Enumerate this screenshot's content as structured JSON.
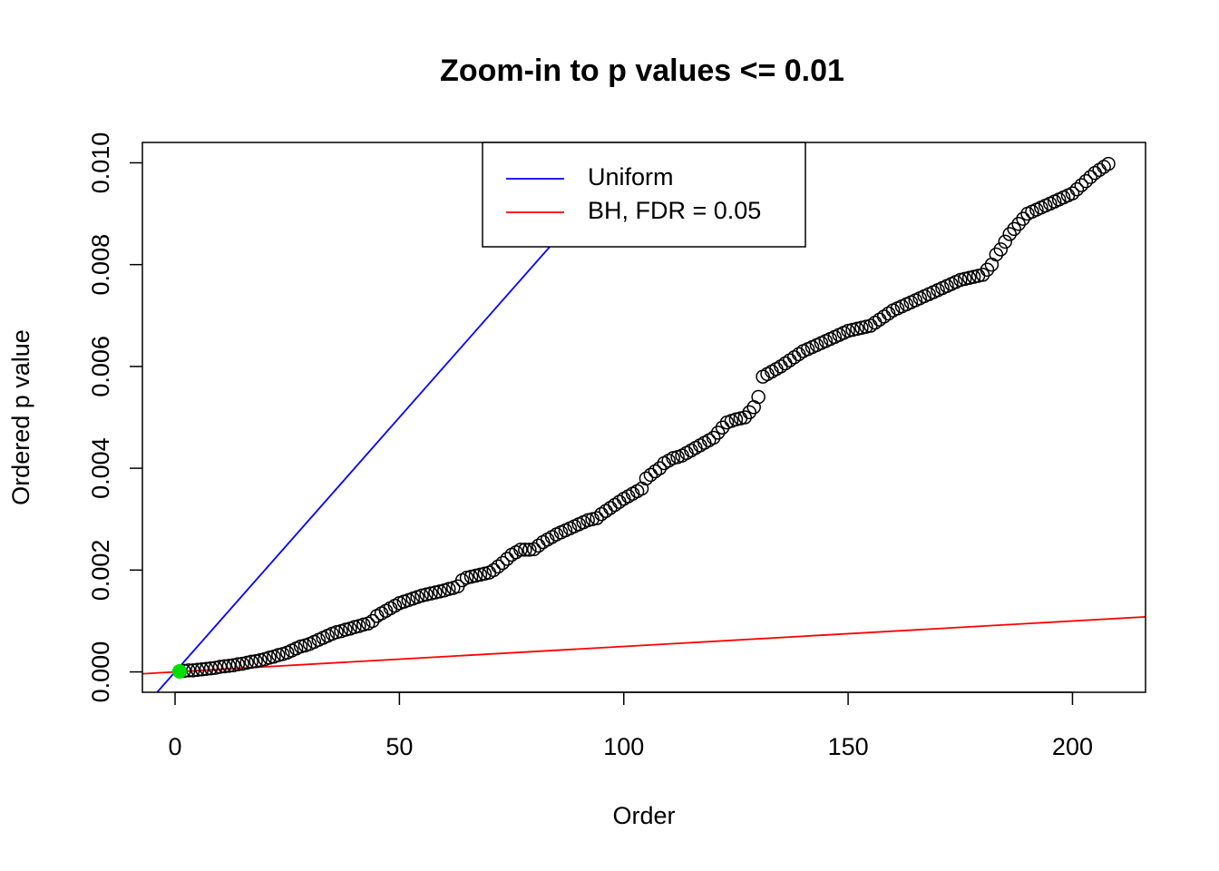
{
  "chart_data": {
    "type": "scatter",
    "title": "Zoom-in to p values <= 0.01",
    "x_label": "Order",
    "y_label": "Ordered p value",
    "xlim": [
      -7.28,
      216.28
    ],
    "ylim": [
      -0.0004,
      0.0104
    ],
    "xticks": [
      0,
      50,
      100,
      150,
      200
    ],
    "yticks": [
      {
        "value": 0,
        "label": "0.000"
      },
      {
        "value": 0.002,
        "label": "0.002"
      },
      {
        "value": 0.004,
        "label": "0.004"
      },
      {
        "value": 0.006,
        "label": "0.006"
      },
      {
        "value": 0.008,
        "label": "0.008"
      },
      {
        "value": 0.01,
        "label": "0.010"
      }
    ],
    "legend": "top",
    "point_color": "#000000",
    "x": [
      1,
      2,
      3,
      4,
      5,
      6,
      7,
      8,
      9,
      10,
      11,
      12,
      13,
      14,
      15,
      16,
      17,
      18,
      19,
      20,
      21,
      22,
      23,
      24,
      25,
      26,
      27,
      28,
      29,
      30,
      31,
      32,
      33,
      34,
      35,
      36,
      37,
      38,
      39,
      40,
      41,
      42,
      43,
      44,
      45,
      46,
      47,
      48,
      49,
      50,
      51,
      52,
      53,
      54,
      55,
      56,
      57,
      58,
      59,
      60,
      61,
      62,
      63,
      64,
      65,
      66,
      67,
      68,
      69,
      70,
      71,
      72,
      73,
      74,
      75,
      76,
      77,
      78,
      79,
      80,
      81,
      82,
      83,
      84,
      85,
      86,
      87,
      88,
      89,
      90,
      91,
      92,
      93,
      94,
      95,
      96,
      97,
      98,
      99,
      100,
      101,
      102,
      103,
      104,
      105,
      106,
      107,
      108,
      109,
      110,
      111,
      112,
      113,
      114,
      115,
      116,
      117,
      118,
      119,
      120,
      121,
      122,
      123,
      124,
      125,
      126,
      127,
      128,
      129,
      130,
      131,
      132,
      133,
      134,
      135,
      136,
      137,
      138,
      139,
      140,
      141,
      142,
      143,
      144,
      145,
      146,
      147,
      148,
      149,
      150,
      151,
      152,
      153,
      154,
      155,
      156,
      157,
      158,
      159,
      160,
      161,
      162,
      163,
      164,
      165,
      166,
      167,
      168,
      169,
      170,
      171,
      172,
      173,
      174,
      175,
      176,
      177,
      178,
      179,
      180,
      181,
      182,
      183,
      184,
      185,
      186,
      187,
      188,
      189,
      190,
      191,
      192,
      193,
      194,
      195,
      196,
      197,
      198,
      199,
      200,
      201,
      202,
      203,
      204,
      205,
      206,
      207,
      208
    ],
    "values": [
      1e-05,
      2e-05,
      3e-05,
      3e-05,
      4e-05,
      5e-05,
      6e-05,
      7e-05,
      8e-05,
      0.0001,
      0.00011,
      0.00012,
      0.00013,
      0.00015,
      0.00016,
      0.00018,
      0.0002,
      0.00021,
      0.00023,
      0.00025,
      0.00028,
      0.0003,
      0.00033,
      0.00035,
      0.00038,
      0.00042,
      0.00046,
      0.0005,
      0.00052,
      0.00055,
      0.00059,
      0.00063,
      0.00067,
      0.00071,
      0.00075,
      0.00078,
      0.0008,
      0.00083,
      0.00085,
      0.00088,
      0.0009,
      0.00093,
      0.00095,
      0.001,
      0.0011,
      0.00115,
      0.0012,
      0.00125,
      0.0013,
      0.00135,
      0.00138,
      0.00141,
      0.00144,
      0.00147,
      0.0015,
      0.00152,
      0.00154,
      0.00156,
      0.00158,
      0.0016,
      0.00163,
      0.00165,
      0.00168,
      0.0018,
      0.00185,
      0.00187,
      0.00189,
      0.00191,
      0.00193,
      0.00195,
      0.002,
      0.00207,
      0.00214,
      0.00222,
      0.0023,
      0.00235,
      0.0024,
      0.0024,
      0.0024,
      0.00241,
      0.00248,
      0.00255,
      0.0026,
      0.00265,
      0.0027,
      0.00274,
      0.00278,
      0.00282,
      0.00286,
      0.0029,
      0.00294,
      0.00298,
      0.003,
      0.00302,
      0.0031,
      0.00316,
      0.00322,
      0.00328,
      0.00334,
      0.0034,
      0.00345,
      0.0035,
      0.00355,
      0.0036,
      0.0038,
      0.00387,
      0.00394,
      0.004,
      0.0041,
      0.00415,
      0.0042,
      0.00422,
      0.00425,
      0.0043,
      0.00435,
      0.0044,
      0.00445,
      0.0045,
      0.00455,
      0.0046,
      0.0047,
      0.0048,
      0.0049,
      0.00493,
      0.00496,
      0.00498,
      0.005,
      0.0051,
      0.0052,
      0.0054,
      0.0058,
      0.00585,
      0.0059,
      0.00595,
      0.006,
      0.00606,
      0.00612,
      0.00618,
      0.00624,
      0.0063,
      0.00634,
      0.00638,
      0.00642,
      0.00646,
      0.0065,
      0.00654,
      0.00658,
      0.00662,
      0.00666,
      0.0067,
      0.00672,
      0.00674,
      0.00676,
      0.00678,
      0.0068,
      0.00686,
      0.00692,
      0.00698,
      0.00704,
      0.0071,
      0.00714,
      0.00718,
      0.00722,
      0.00726,
      0.0073,
      0.00734,
      0.00738,
      0.00742,
      0.00746,
      0.0075,
      0.00754,
      0.00758,
      0.00762,
      0.00766,
      0.0077,
      0.00772,
      0.00774,
      0.00776,
      0.00778,
      0.0078,
      0.0079,
      0.008,
      0.0082,
      0.0083,
      0.00845,
      0.0086,
      0.0087,
      0.0088,
      0.0089,
      0.009,
      0.00904,
      0.00908,
      0.00912,
      0.00916,
      0.0092,
      0.00924,
      0.00928,
      0.00932,
      0.00936,
      0.0094,
      0.00948,
      0.00956,
      0.00964,
      0.00972,
      0.0098,
      0.00986,
      0.00992,
      0.00998
    ],
    "highlight": {
      "color": "#00dd00",
      "x": [
        1
      ],
      "values": [
        1e-05
      ]
    },
    "lines": [
      {
        "name": "Uniform",
        "color": "#0000ff",
        "slope": 0.0001,
        "intercept": 0
      },
      {
        "name": "BH, FDR = 0.05",
        "color": "#ff0000",
        "slope": 5e-06,
        "intercept": 0
      }
    ]
  }
}
